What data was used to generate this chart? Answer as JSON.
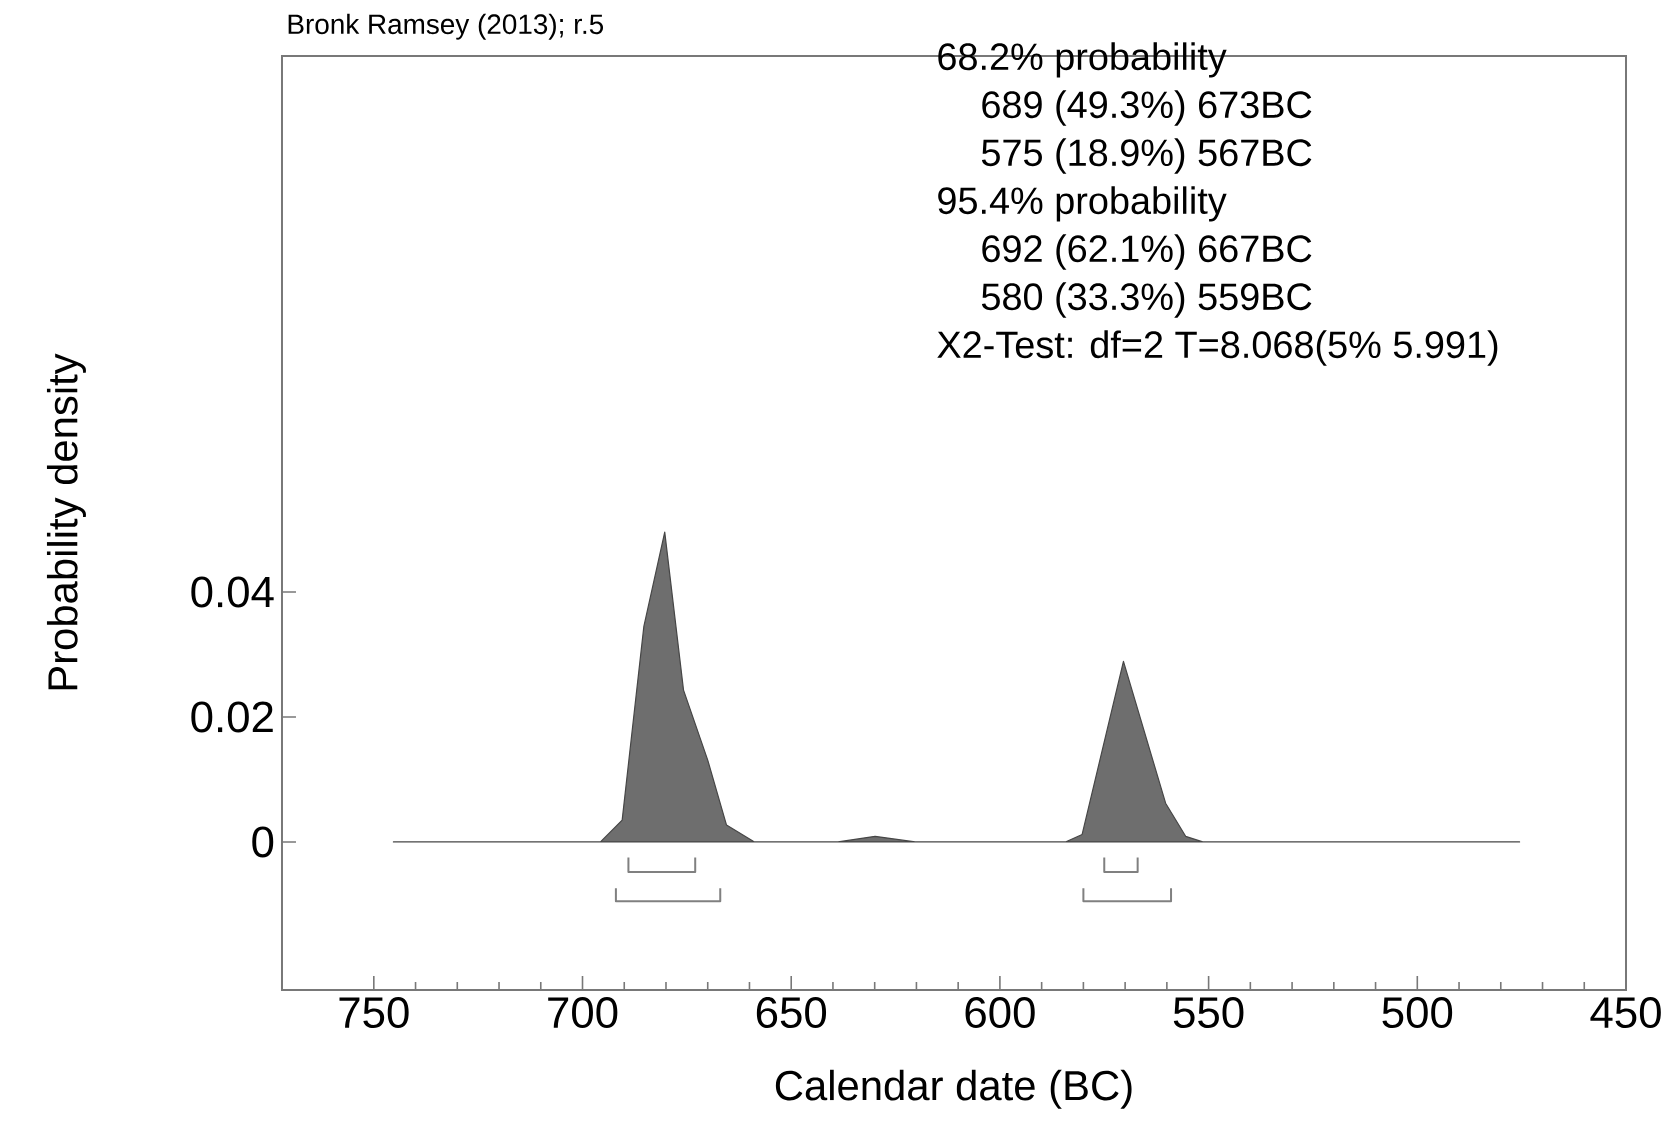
{
  "chart_data": {
    "type": "area",
    "title": "Bronk Ramsey (2013); r.5",
    "xlabel": "Calendar date (BC)",
    "ylabel": "Probability density",
    "annotations": [
      "68.2% probability",
      "689 (49.3%) 673BC",
      "575 (18.9%) 567BC",
      "95.4% probability",
      "692 (62.1%) 667BC",
      "580 (33.3%) 559BC",
      "X2-Test: df=2 T=8.068(5% 5.991)"
    ],
    "xlim": [
      772,
      450
    ],
    "ylim": [
      -0.0237,
      0.1258
    ],
    "xticks": [
      750,
      700,
      650,
      600,
      550,
      500,
      450
    ],
    "yticks": [
      0,
      0.02,
      0.04
    ],
    "grid": false,
    "series": [
      {
        "color": "#6e6e6e",
        "x": [
          745.3,
          695.7,
          690.5,
          685.3,
          680.3,
          675.8,
          670.0,
          665.5,
          658.8,
          638.8,
          629.9,
          620.3,
          584.3,
          580.3,
          570.4,
          560.3,
          555.5,
          551.4,
          475.5
        ],
        "values": [
          0,
          0,
          0.0035,
          0.0345,
          0.0496,
          0.0243,
          0.0131,
          0.0027,
          0,
          0,
          0.0009,
          0,
          0,
          0.0012,
          0.0289,
          0.0062,
          0.0009,
          0,
          0
        ]
      },
      {
        "type": "line",
        "color": "#808080",
        "x": [
          689,
          689,
          673,
          673
        ],
        "values": [
          -0.0025,
          -0.0048,
          -0.0048,
          -0.0025
        ]
      },
      {
        "type": "line",
        "color": "#808080",
        "x": [
          575,
          575,
          567,
          567
        ],
        "values": [
          -0.0025,
          -0.0048,
          -0.0048,
          -0.0025
        ]
      },
      {
        "type": "line",
        "color": "#808080",
        "x": [
          692,
          692,
          667,
          667
        ],
        "values": [
          -0.0074,
          -0.0095,
          -0.0095,
          -0.0074
        ]
      },
      {
        "type": "line",
        "color": "#808080",
        "x": [
          580,
          580,
          559,
          559
        ],
        "values": [
          -0.0074,
          -0.0095,
          -0.0095,
          -0.0074
        ]
      }
    ]
  }
}
